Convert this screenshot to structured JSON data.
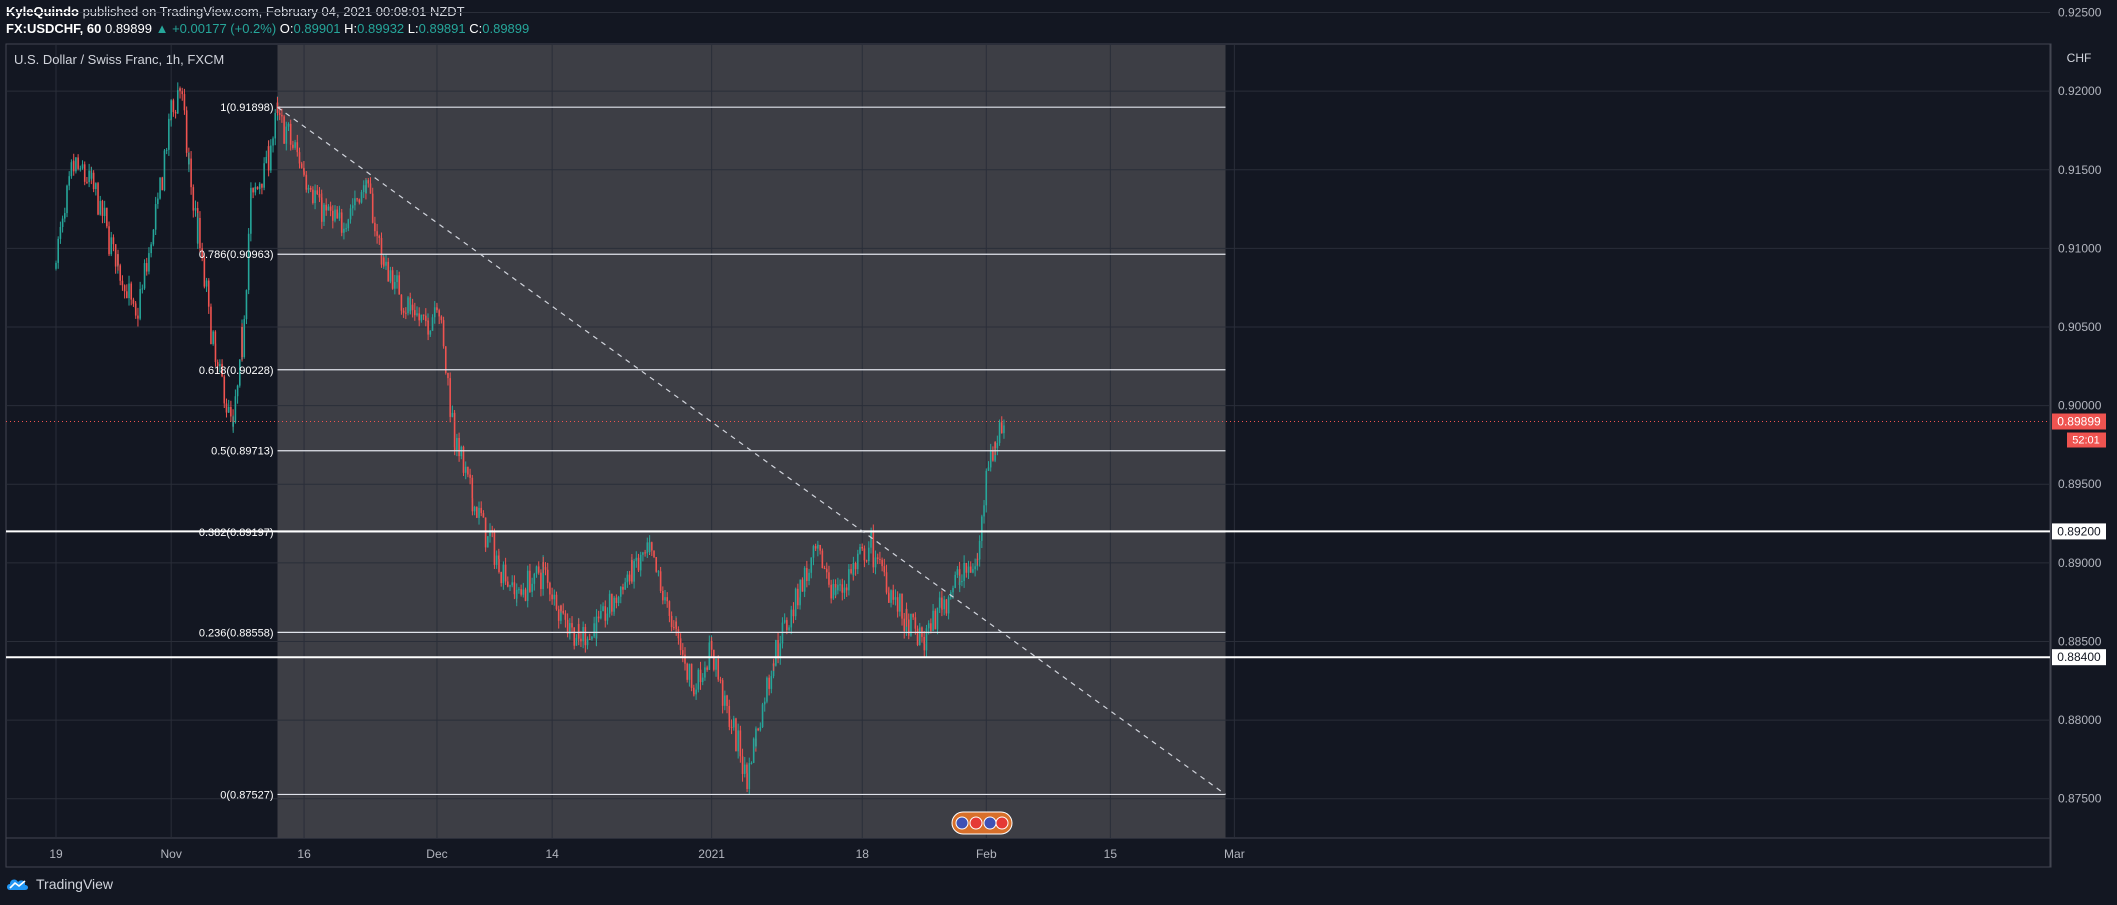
{
  "header": {
    "author": "KyleQuindo",
    "published": "published on TradingView.com, February 04, 2021 00:08:01 NZDT",
    "symbol": "FX:USDCHF, 60",
    "last": "0.89899",
    "change": "▲ +0.00177 (+0.2%)",
    "o_label": "O:",
    "o": "0.89901",
    "h_label": "H:",
    "h": "0.89932",
    "l_label": "L:",
    "l": "0.89891",
    "c_label": "C:",
    "c": "0.89899"
  },
  "footer": {
    "brand": "TradingView"
  },
  "chart_data": {
    "type": "candlestick",
    "title": "U.S. Dollar / Swiss Franc, 1h, FXCM",
    "currency": "CHF",
    "ylim": [
      0.8725,
      0.923
    ],
    "y_ticks": [
      "0.87500",
      "0.88000",
      "0.88500",
      "0.89000",
      "0.89500",
      "0.90000",
      "0.90500",
      "0.91000",
      "0.91500",
      "0.92000",
      "0.92500"
    ],
    "x_ticks": [
      {
        "label": "19",
        "date": "2020-10-19"
      },
      {
        "label": "Nov",
        "date": "2020-11-01"
      },
      {
        "label": "16",
        "date": "2020-11-16"
      },
      {
        "label": "Dec",
        "date": "2020-12-01"
      },
      {
        "label": "14",
        "date": "2020-12-14"
      },
      {
        "label": "2021",
        "date": "2021-01-01"
      },
      {
        "label": "18",
        "date": "2021-01-18"
      },
      {
        "label": "Feb",
        "date": "2021-02-01"
      },
      {
        "label": "15",
        "date": "2021-02-15"
      },
      {
        "label": "Mar",
        "date": "2021-03-01"
      }
    ],
    "price_path": [
      [
        "2020-10-19",
        0.9095
      ],
      [
        "2020-10-21",
        0.9152
      ],
      [
        "2020-10-23",
        0.9142
      ],
      [
        "2020-10-26",
        0.909
      ],
      [
        "2020-10-28",
        0.9055
      ],
      [
        "2020-10-30",
        0.911
      ],
      [
        "2020-11-01",
        0.9185
      ],
      [
        "2020-11-02",
        0.9205
      ],
      [
        "2020-11-03",
        0.915
      ],
      [
        "2020-11-04",
        0.911
      ],
      [
        "2020-11-06",
        0.903
      ],
      [
        "2020-11-08",
        0.8985
      ],
      [
        "2020-11-09",
        0.904
      ],
      [
        "2020-11-10",
        0.913
      ],
      [
        "2020-11-12",
        0.916
      ],
      [
        "2020-11-13",
        0.9185
      ],
      [
        "2020-11-16",
        0.915
      ],
      [
        "2020-11-18",
        0.9125
      ],
      [
        "2020-11-20",
        0.9115
      ],
      [
        "2020-11-23",
        0.914
      ],
      [
        "2020-11-25",
        0.909
      ],
      [
        "2020-11-28",
        0.906
      ],
      [
        "2020-11-30",
        0.905
      ],
      [
        "2020-12-01",
        0.907
      ],
      [
        "2020-12-03",
        0.898
      ],
      [
        "2020-12-05",
        0.894
      ],
      [
        "2020-12-08",
        0.89
      ],
      [
        "2020-12-10",
        0.888
      ],
      [
        "2020-12-13",
        0.8895
      ],
      [
        "2020-12-15",
        0.887
      ],
      [
        "2020-12-17",
        0.885
      ],
      [
        "2020-12-19",
        0.886
      ],
      [
        "2020-12-21",
        0.8875
      ],
      [
        "2020-12-23",
        0.8895
      ],
      [
        "2020-12-25",
        0.8905
      ],
      [
        "2020-12-28",
        0.8855
      ],
      [
        "2020-12-30",
        0.882
      ],
      [
        "2021-01-01",
        0.8845
      ],
      [
        "2021-01-03",
        0.88
      ],
      [
        "2021-01-05",
        0.8765
      ],
      [
        "2021-01-06",
        0.879
      ],
      [
        "2021-01-08",
        0.884
      ],
      [
        "2021-01-11",
        0.8885
      ],
      [
        "2021-01-13",
        0.8905
      ],
      [
        "2021-01-15",
        0.888
      ],
      [
        "2021-01-17",
        0.8895
      ],
      [
        "2021-01-19",
        0.891
      ],
      [
        "2021-01-21",
        0.8885
      ],
      [
        "2021-01-23",
        0.886
      ],
      [
        "2021-01-25",
        0.885
      ],
      [
        "2021-01-27",
        0.8875
      ],
      [
        "2021-01-29",
        0.889
      ],
      [
        "2021-01-31",
        0.89
      ],
      [
        "2021-02-01",
        0.896
      ],
      [
        "2021-02-02",
        0.8975
      ],
      [
        "2021-02-03",
        0.899
      ]
    ],
    "last_price": {
      "value": 0.89899,
      "label": "0.89899",
      "countdown": "52:01",
      "color": "#ef5350"
    },
    "horizontal_levels": [
      {
        "value": 0.892,
        "label": "0.89200"
      },
      {
        "value": 0.884,
        "label": "0.88400"
      }
    ],
    "fib_retracement": {
      "start_date": "2020-11-13",
      "end_date": "2021-02-28",
      "fill": "#3d3e45",
      "levels": [
        {
          "ratio": "1",
          "value": 0.91898,
          "label": "1(0.91898)"
        },
        {
          "ratio": "0.786",
          "value": 0.90963,
          "label": "0.786(0.90963)"
        },
        {
          "ratio": "0.618",
          "value": 0.90228,
          "label": "0.618(0.90228)"
        },
        {
          "ratio": "0.5",
          "value": 0.89713,
          "label": "0.5(0.89713)"
        },
        {
          "ratio": "0.382",
          "value": 0.89197,
          "label": "0.382(0.89197)"
        },
        {
          "ratio": "0.236",
          "value": 0.88558,
          "label": "0.236(0.88558)"
        },
        {
          "ratio": "0",
          "value": 0.87527,
          "label": "0(0.87527)"
        }
      ]
    },
    "trend_line": {
      "from": [
        "2020-11-13",
        0.91898
      ],
      "to": [
        "2021-02-28",
        0.87527
      ],
      "style": "dashed"
    },
    "colors": {
      "up": "#26a69a",
      "down": "#ef5350",
      "background": "#131722",
      "grid": "#2a2e39"
    },
    "grid": true
  }
}
